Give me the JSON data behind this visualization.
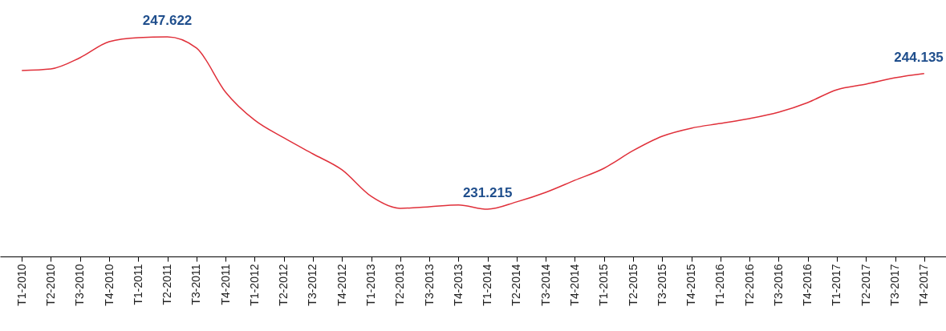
{
  "chart_data": {
    "type": "line",
    "categories": [
      "T1-2010",
      "T2-2010",
      "T3-2010",
      "T4-2010",
      "T1-2011",
      "T2-2011",
      "T3-2011",
      "T4-2011",
      "T1-2012",
      "T2-2012",
      "T3-2012",
      "T4-2012",
      "T1-2013",
      "T2-2013",
      "T3-2013",
      "T4-2013",
      "T1-2014",
      "T2-2014",
      "T3-2014",
      "T4-2014",
      "T1-2015",
      "T2-2015",
      "T3-2015",
      "T4-2015",
      "T1-2016",
      "T2-2016",
      "T3-2016",
      "T4-2016",
      "T1-2017",
      "T2-2017",
      "T3-2017",
      "T4-2017"
    ],
    "series": [
      {
        "color": "#e0303a",
        "values": [
          244.42,
          244.57,
          245.64,
          247.16,
          247.55,
          247.622,
          246.56,
          242.36,
          239.69,
          238.01,
          236.48,
          234.96,
          232.44,
          231.3,
          231.45,
          231.61,
          231.215,
          231.91,
          232.82,
          233.97,
          235.11,
          236.79,
          238.16,
          238.93,
          239.38,
          239.84,
          240.45,
          241.37,
          242.59,
          243.12,
          243.73,
          244.135
        ],
        "value_labels": [
          null,
          null,
          null,
          null,
          null,
          "247.622",
          null,
          null,
          null,
          null,
          null,
          null,
          null,
          null,
          null,
          null,
          "231.215",
          null,
          null,
          null,
          null,
          null,
          null,
          null,
          null,
          null,
          null,
          null,
          null,
          null,
          null,
          "244.135"
        ]
      }
    ],
    "grid": false
  }
}
